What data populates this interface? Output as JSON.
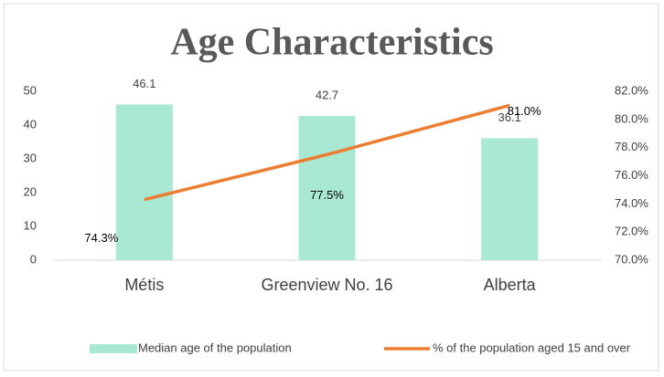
{
  "chart_data": {
    "type": "bar_line",
    "title": "Age Characteristics",
    "categories": [
      "Métis",
      "Greenview No. 16",
      "Alberta"
    ],
    "series": [
      {
        "name": "Median age of the population",
        "color": "#a9e8d3",
        "type": "bar",
        "values": [
          46.1,
          42.7,
          36.1
        ]
      },
      {
        "name": "% of the population aged 15 and over",
        "color": "#ed7d31",
        "type": "line",
        "axis": "y2",
        "values": [
          74.3,
          77.5,
          81.0
        ],
        "value_labels": [
          "74.3%",
          "77.5%",
          "81.0%"
        ]
      }
    ],
    "ylim": [
      0,
      50
    ],
    "yticks": [
      0,
      10,
      20,
      30,
      40,
      50
    ],
    "y2lim": [
      70,
      82
    ],
    "y2ticks": [
      {
        "value": 70,
        "label": "70.0%"
      },
      {
        "value": 72,
        "label": "72.0%"
      },
      {
        "value": 74,
        "label": "74.0%"
      },
      {
        "value": 76,
        "label": "76.0%"
      },
      {
        "value": 78,
        "label": "78.0%"
      },
      {
        "value": 80,
        "label": "80.0%"
      },
      {
        "value": 82,
        "label": "82.0%"
      }
    ],
    "legend": "bottom"
  }
}
